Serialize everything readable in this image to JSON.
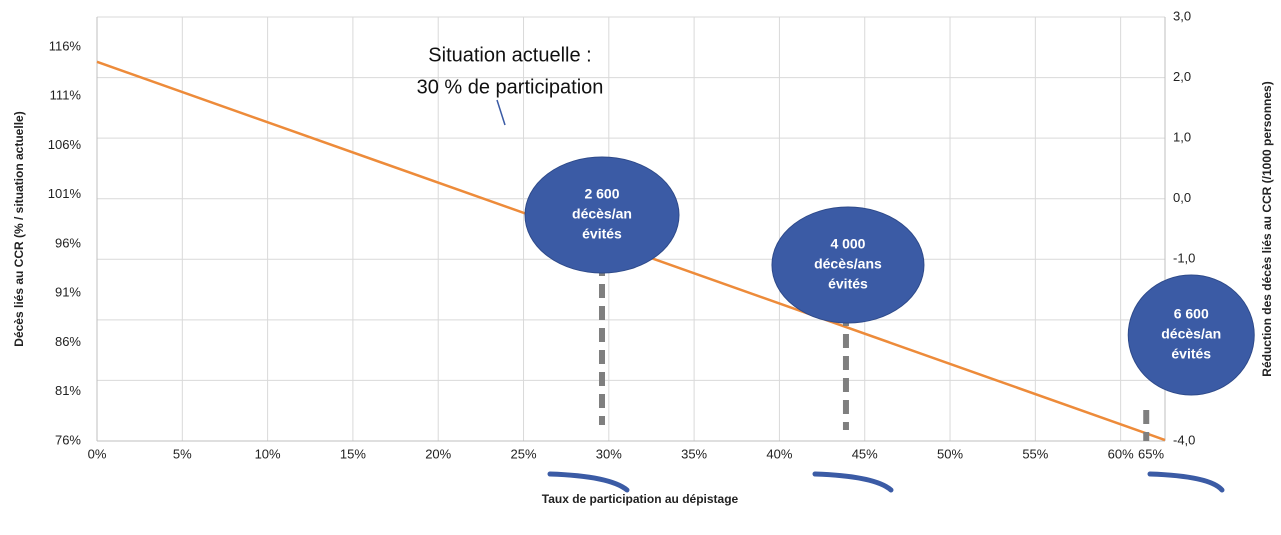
{
  "chart_data": {
    "type": "line",
    "x_label": "Taux de participation au dépistage",
    "y_label": "Décès liés au CCR (% / situation actuelle)",
    "y2_label": "Réduction des décès liés au CCR (/1000 personnes)",
    "x": [
      0,
      62.6
    ],
    "series": [
      {
        "color": "#ed8b3a",
        "values": [
          114.5,
          76.1
        ]
      }
    ],
    "xlim": [
      0,
      62.6
    ],
    "xticks": [
      {
        "value": 0,
        "label": "0%"
      },
      {
        "value": 5,
        "label": "5%"
      },
      {
        "value": 10,
        "label": "10%"
      },
      {
        "value": 15,
        "label": "15%"
      },
      {
        "value": 20,
        "label": "20%"
      },
      {
        "value": 25,
        "label": "25%"
      },
      {
        "value": 30,
        "label": "30%"
      },
      {
        "value": 35,
        "label": "35%"
      },
      {
        "value": 40,
        "label": "40%"
      },
      {
        "value": 45,
        "label": "45%"
      },
      {
        "value": 50,
        "label": "50%"
      },
      {
        "value": 55,
        "label": "55%"
      },
      {
        "value": 60,
        "label": "60%"
      },
      {
        "value": 65,
        "label": "65%"
      }
    ],
    "ylim": [
      76,
      119.05
    ],
    "yticks": [
      {
        "value": 76,
        "label": "76%"
      },
      {
        "value": 81,
        "label": "81%"
      },
      {
        "value": 86,
        "label": "86%"
      },
      {
        "value": 91,
        "label": "91%"
      },
      {
        "value": 96,
        "label": "96%"
      },
      {
        "value": 101,
        "label": "101%"
      },
      {
        "value": 106,
        "label": "106%"
      },
      {
        "value": 111,
        "label": "111%"
      },
      {
        "value": 116,
        "label": "116%"
      }
    ],
    "y2lim": [
      -4,
      3
    ],
    "y2ticks": [
      {
        "value": -4,
        "label": "-4,0"
      },
      {
        "value": -3,
        "label": "-3,0"
      },
      {
        "value": -2,
        "label": "-2,0"
      },
      {
        "value": -1,
        "label": "-1,0"
      },
      {
        "value": 0,
        "label": "0,0"
      },
      {
        "value": 1,
        "label": "1,0"
      },
      {
        "value": 2,
        "label": "2,0"
      },
      {
        "value": 3,
        "label": "3,0"
      }
    ],
    "grid": true,
    "annotation": [
      "Situation actuelle :",
      "30 % de participation"
    ],
    "callouts": [
      {
        "x": 29.6,
        "text": [
          "2 600",
          "décès/an",
          "évités"
        ]
      },
      {
        "x": 43.9,
        "text": [
          "4 000",
          "décès/ans",
          "évités"
        ]
      },
      {
        "x": 61.5,
        "text": [
          "6 600",
          "décès/an",
          "évités"
        ]
      }
    ]
  }
}
